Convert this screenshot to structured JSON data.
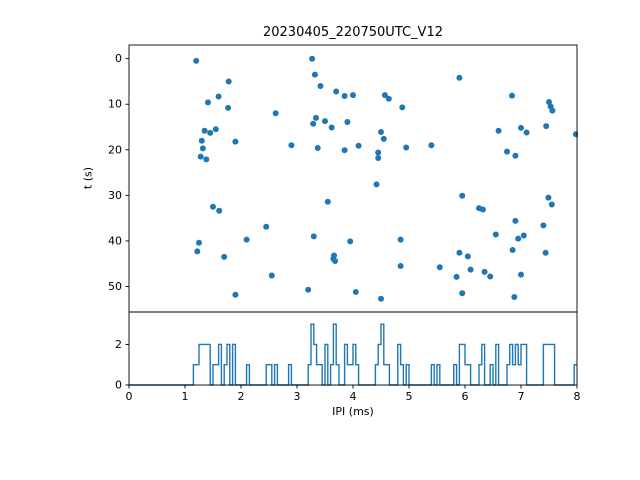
{
  "figure": {
    "title": "20230405_220750UTC_V12",
    "background_color": "#ffffff",
    "accent_color": "#1f77b4"
  },
  "chart_data": [
    {
      "type": "scatter",
      "title": "20230405_220750UTC_V12",
      "xlabel": "",
      "ylabel": "t (s)",
      "xlim": [
        0,
        8
      ],
      "ylim_top": -3.0,
      "ylim_bottom": 55.6,
      "y_inverted": true,
      "yticks": [
        0,
        10,
        20,
        30,
        40,
        50
      ],
      "grid": false,
      "marker_color": "#1f77b4",
      "marker_radius": 3,
      "x": [
        1.2,
        3.27,
        3.32,
        1.78,
        5.9,
        3.42,
        1.6,
        3.7,
        3.85,
        4.0,
        4.57,
        4.64,
        6.84,
        1.41,
        1.77,
        4.88,
        7.5,
        7.53,
        7.56,
        2.62,
        3.34,
        7.45,
        1.35,
        1.45,
        1.55,
        3.29,
        3.5,
        3.62,
        3.9,
        4.5,
        4.55,
        6.6,
        7.0,
        7.1,
        7.98,
        1.3,
        1.32,
        1.9,
        2.9,
        3.37,
        3.85,
        4.1,
        4.45,
        4.95,
        5.4,
        6.75,
        6.9,
        1.28,
        1.38,
        4.45,
        4.42,
        1.5,
        1.61,
        3.55,
        5.95,
        6.25,
        6.32,
        7.49,
        7.55,
        2.45,
        6.9,
        7.4,
        1.25,
        2.1,
        3.3,
        3.95,
        4.85,
        6.55,
        6.95,
        7.05,
        1.22,
        1.7,
        3.65,
        3.66,
        3.68,
        5.9,
        6.05,
        6.85,
        7.44,
        4.85,
        5.55,
        6.1,
        6.35,
        2.55,
        5.85,
        6.45,
        7.0,
        3.2,
        4.05,
        1.9,
        5.95,
        6.88,
        4.5
      ],
      "y": [
        0.5,
        0.0,
        3.5,
        5.0,
        4.2,
        6.0,
        8.3,
        7.2,
        8.2,
        8.0,
        8.0,
        8.8,
        8.1,
        9.6,
        10.8,
        10.7,
        9.5,
        10.5,
        11.4,
        12.0,
        13.0,
        14.8,
        15.8,
        16.3,
        15.5,
        14.3,
        13.7,
        15.1,
        13.9,
        16.1,
        17.6,
        15.8,
        15.2,
        16.2,
        16.6,
        18.0,
        19.7,
        18.2,
        19.0,
        19.6,
        20.1,
        19.1,
        20.6,
        19.5,
        19.0,
        20.4,
        21.3,
        21.5,
        22.1,
        21.8,
        27.6,
        32.5,
        33.4,
        31.4,
        30.1,
        32.8,
        33.1,
        30.5,
        32.0,
        36.9,
        35.6,
        36.6,
        40.4,
        39.7,
        39.0,
        40.1,
        39.7,
        38.6,
        39.5,
        38.8,
        42.3,
        43.5,
        43.9,
        43.2,
        44.4,
        42.6,
        43.4,
        42.0,
        42.6,
        45.5,
        45.8,
        46.3,
        46.8,
        47.6,
        47.9,
        47.8,
        47.4,
        50.7,
        51.2,
        51.8,
        51.5,
        52.3,
        52.7
      ]
    },
    {
      "type": "histogram",
      "title": "",
      "xlabel": "IPI (ms)",
      "ylabel": "",
      "xlim": [
        0,
        8
      ],
      "ylim": [
        0,
        3.6
      ],
      "xticks": [
        0,
        1,
        2,
        3,
        4,
        5,
        6,
        7,
        8
      ],
      "yticks": [
        0,
        2
      ],
      "bin_width": 0.05,
      "source": "histogram of scatter x values (IPI ms)",
      "line_color": "#1f77b4",
      "grid": false
    }
  ]
}
